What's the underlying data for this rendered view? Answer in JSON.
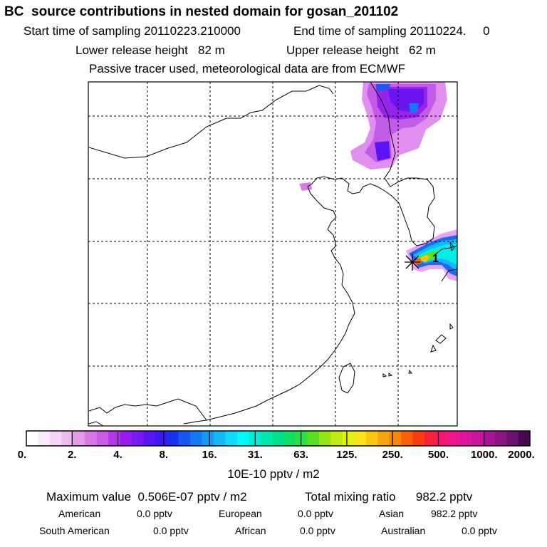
{
  "header": {
    "title": "BC  source contributions in nested domain for gosan_201102",
    "start_label": "Start time of sampling 20110223.210000",
    "end_label": "End time of sampling 20110224.     0",
    "lower_label": "Lower release height   82 m",
    "upper_label": "Upper release height   62 m",
    "subtitle": "Passive tracer used, meteorological data are from ECMWF"
  },
  "chart_data": {
    "type": "heatmap",
    "title": "BC  source contributions in nested domain for gosan_201102",
    "colorbar": {
      "tick_labels": [
        "0.",
        "2.",
        "4.",
        "8.",
        "16.",
        "31.",
        "63.",
        "125.",
        "250.",
        "500.",
        "1000.",
        "2000."
      ],
      "units": "10E-10 pptv / m2",
      "colors": [
        "#ffffff",
        "#fbe8fb",
        "#f5d2f6",
        "#eebbf0",
        "#e49ae9",
        "#d878e6",
        "#c85ae6",
        "#b538ec",
        "#9a1af0",
        "#7d16f4",
        "#5a14f4",
        "#3a18f8",
        "#1a32f0",
        "#1656f2",
        "#1478f4",
        "#149af6",
        "#12b8f8",
        "#10d8fa",
        "#00f8f8",
        "#00ecd8",
        "#00e8b0",
        "#00e08a",
        "#10e064",
        "#2ae040",
        "#5ae020",
        "#90e414",
        "#c0ea14",
        "#e6f014",
        "#f8e414",
        "#f8c410",
        "#f8a40e",
        "#f8840c",
        "#f86008",
        "#f83c10",
        "#f8203a",
        "#f81470",
        "#f01490",
        "#e0149c",
        "#c814a0",
        "#aa149c",
        "#8c1484",
        "#6a1070",
        "#4a0850"
      ]
    },
    "grid": true,
    "receptor_marker": "1"
  },
  "footer": {
    "max_label": "Maximum value  0.506E-07 pptv / m2",
    "total_label": "Total mixing ratio      982.2 pptv",
    "american_label": "American",
    "american_value": "0.0 pptv",
    "european_label": "European",
    "european_value": "0.0 pptv",
    "asian_label": "Asian",
    "asian_value": "982.2 pptv",
    "south_american_label": "South American",
    "south_american_value": "0.0 pptv",
    "african_label": "African",
    "african_value": "0.0 pptv",
    "australian_label": "Australian",
    "australian_value": "0.0 pptv"
  }
}
